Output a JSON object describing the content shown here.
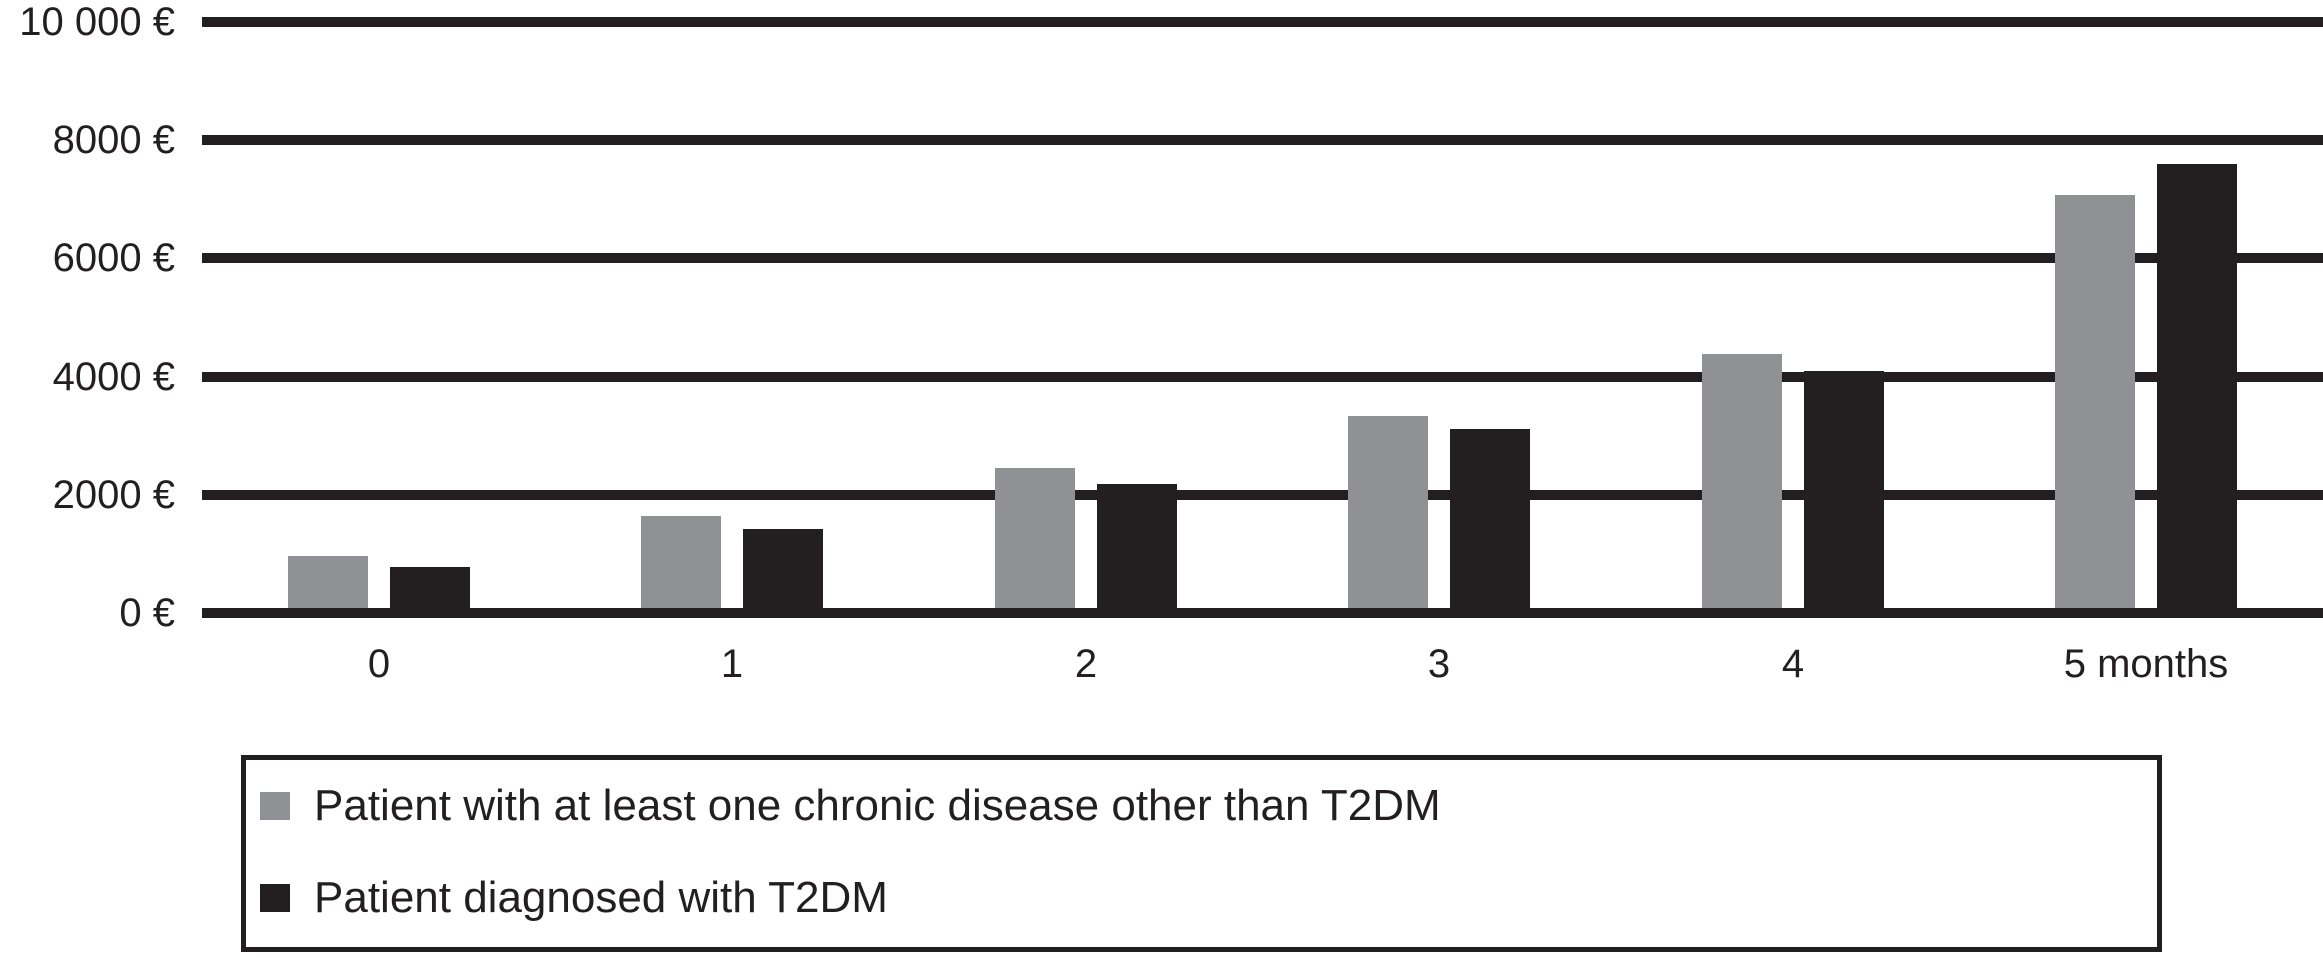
{
  "chart_data": {
    "type": "bar",
    "title": "",
    "xlabel": "",
    "ylabel": "",
    "categories": [
      "0",
      "1",
      "2",
      "3",
      "4",
      "5 months"
    ],
    "series": [
      {
        "name": "Patient with at least one chronic disease other than T2DM",
        "color": "#8f9194",
        "values": [
          970,
          1640,
          2450,
          3330,
          4390,
          7080
        ]
      },
      {
        "name": "Patient diagnosed with T2DM",
        "color": "#231f20",
        "values": [
          770,
          1420,
          2180,
          3110,
          4100,
          7590
        ]
      }
    ],
    "y_ticks": [
      {
        "value": 0,
        "label": "0 €"
      },
      {
        "value": 2000,
        "label": "2000 €"
      },
      {
        "value": 4000,
        "label": "4000 €"
      },
      {
        "value": 6000,
        "label": "6000 €"
      },
      {
        "value": 8000,
        "label": "8000 €"
      },
      {
        "value": 10000,
        "label": "10 000 €"
      }
    ],
    "ylim": [
      0,
      10000
    ],
    "grid": true,
    "gridline_color": "#231f20",
    "legend_position": "bottom-left",
    "currency": "€"
  }
}
